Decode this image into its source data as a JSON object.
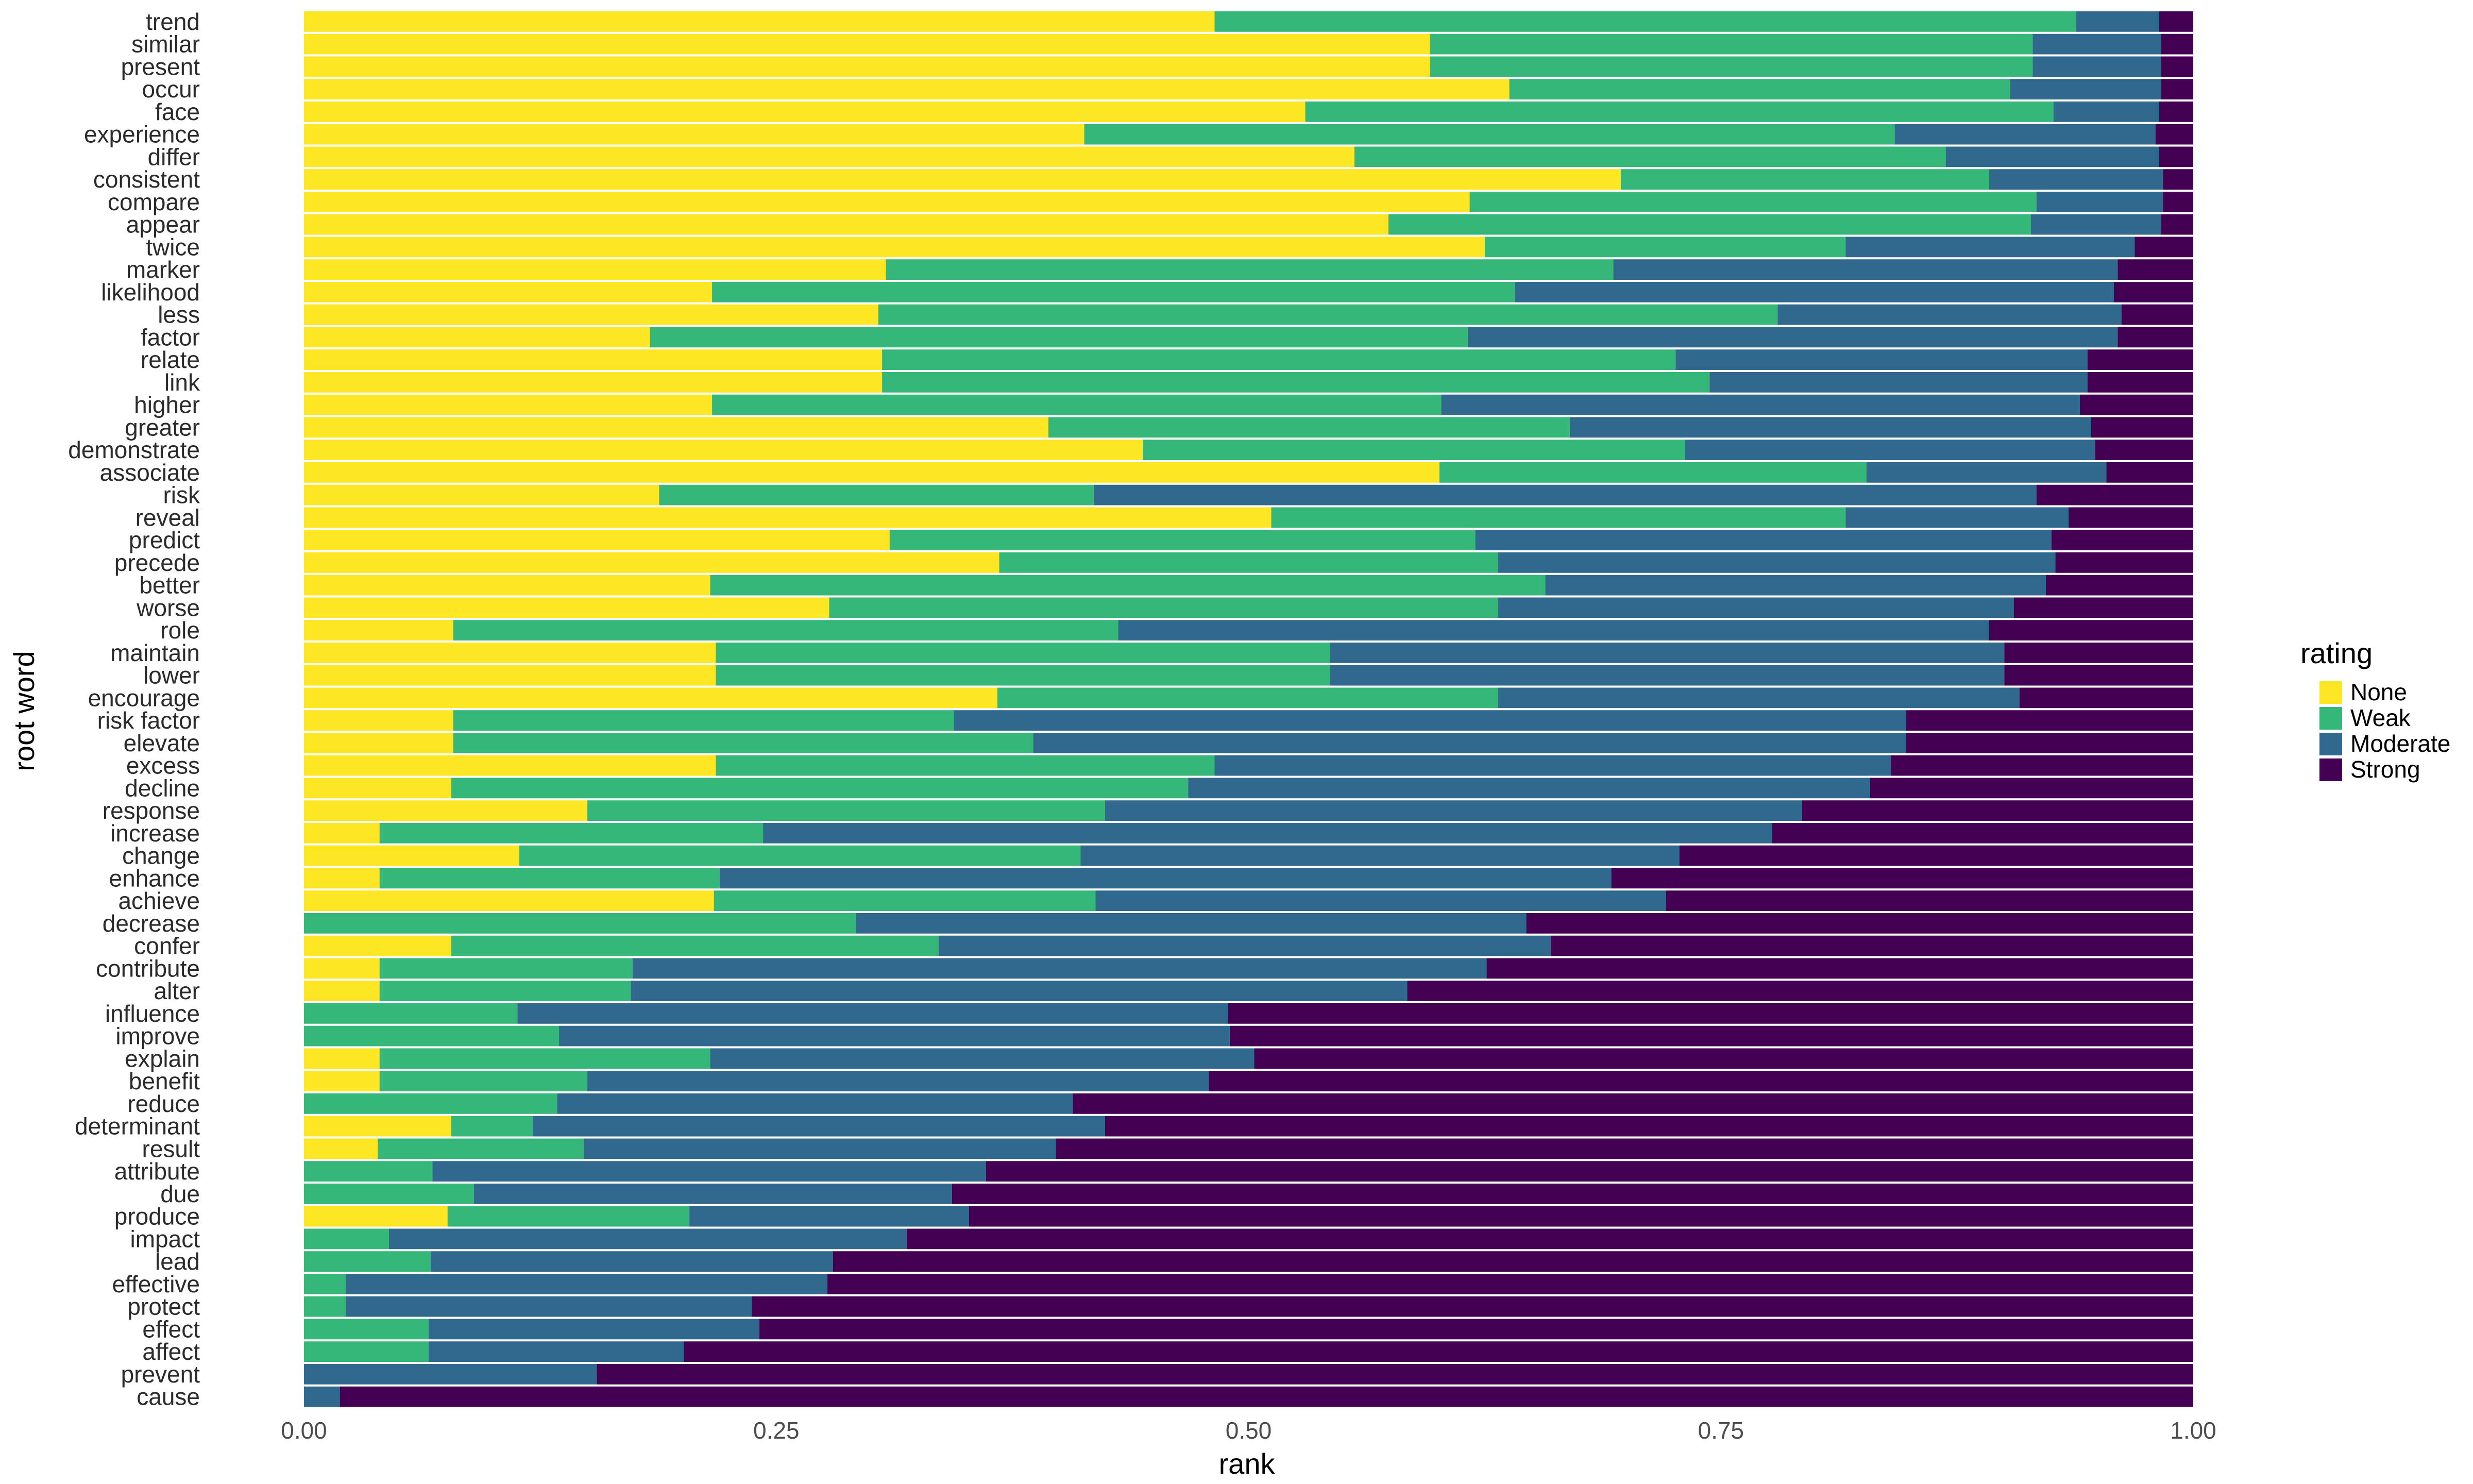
{
  "chart_data": {
    "type": "bar",
    "orientation": "horizontal",
    "stacked": true,
    "xlabel": "rank",
    "ylabel": "root word",
    "xlim": [
      0,
      1
    ],
    "x_ticks": [
      "0.00",
      "0.25",
      "0.50",
      "0.75",
      "1.00"
    ],
    "x_tick_values": [
      0,
      0.25,
      0.5,
      0.75,
      1.0
    ],
    "grid": false,
    "legend": {
      "title": "rating",
      "placement": "right",
      "entries": [
        {
          "name": "None",
          "color": "#FDE725"
        },
        {
          "name": "Weak",
          "color": "#35B779"
        },
        {
          "name": "Moderate",
          "color": "#31688E"
        },
        {
          "name": "Strong",
          "color": "#440154"
        }
      ]
    },
    "series_names": [
      "None",
      "Weak",
      "Moderate",
      "Strong"
    ],
    "categories": [
      "trend",
      "similar",
      "present",
      "occur",
      "face",
      "experience",
      "differ",
      "consistent",
      "compare",
      "appear",
      "twice",
      "marker",
      "likelihood",
      "less",
      "factor",
      "relate",
      "link",
      "higher",
      "greater",
      "demonstrate",
      "associate",
      "risk",
      "reveal",
      "predict",
      "precede",
      "better",
      "worse",
      "role",
      "maintain",
      "lower",
      "encourage",
      "risk factor",
      "elevate",
      "excess",
      "decline",
      "response",
      "increase",
      "change",
      "enhance",
      "achieve",
      "decrease",
      "confer",
      "contribute",
      "alter",
      "influence",
      "improve",
      "explain",
      "benefit",
      "reduce",
      "determinant",
      "result",
      "attribute",
      "due",
      "produce",
      "impact",
      "lead",
      "effective",
      "protect",
      "effect",
      "affect",
      "prevent",
      "cause"
    ],
    "cumulative_breaks": [
      [
        0.482,
        0.938,
        0.982
      ],
      [
        0.596,
        0.915,
        0.983
      ],
      [
        0.596,
        0.915,
        0.983
      ],
      [
        0.638,
        0.903,
        0.983
      ],
      [
        0.53,
        0.926,
        0.982
      ],
      [
        0.413,
        0.842,
        0.98
      ],
      [
        0.556,
        0.869,
        0.982
      ],
      [
        0.697,
        0.892,
        0.984
      ],
      [
        0.617,
        0.917,
        0.984
      ],
      [
        0.574,
        0.914,
        0.983
      ],
      [
        0.625,
        0.816,
        0.969
      ],
      [
        0.308,
        0.693,
        0.96
      ],
      [
        0.216,
        0.641,
        0.958
      ],
      [
        0.304,
        0.78,
        0.962
      ],
      [
        0.183,
        0.616,
        0.96
      ],
      [
        0.306,
        0.726,
        0.944
      ],
      [
        0.306,
        0.744,
        0.944
      ],
      [
        0.216,
        0.602,
        0.94
      ],
      [
        0.394,
        0.67,
        0.946
      ],
      [
        0.444,
        0.731,
        0.948
      ],
      [
        0.601,
        0.827,
        0.954
      ],
      [
        0.188,
        0.418,
        0.917
      ],
      [
        0.512,
        0.816,
        0.934
      ],
      [
        0.31,
        0.62,
        0.925
      ],
      [
        0.368,
        0.632,
        0.927
      ],
      [
        0.215,
        0.657,
        0.922
      ],
      [
        0.278,
        0.632,
        0.905
      ],
      [
        0.079,
        0.431,
        0.892
      ],
      [
        0.218,
        0.543,
        0.9
      ],
      [
        0.218,
        0.543,
        0.9
      ],
      [
        0.367,
        0.632,
        0.908
      ],
      [
        0.079,
        0.344,
        0.848
      ],
      [
        0.079,
        0.386,
        0.848
      ],
      [
        0.218,
        0.482,
        0.84
      ],
      [
        0.078,
        0.468,
        0.829
      ],
      [
        0.15,
        0.424,
        0.793
      ],
      [
        0.04,
        0.243,
        0.777
      ],
      [
        0.114,
        0.411,
        0.728
      ],
      [
        0.04,
        0.22,
        0.692
      ],
      [
        0.217,
        0.419,
        0.721
      ],
      [
        0.0,
        0.292,
        0.647
      ],
      [
        0.078,
        0.336,
        0.66
      ],
      [
        0.04,
        0.174,
        0.626
      ],
      [
        0.04,
        0.173,
        0.584
      ],
      [
        0.0,
        0.113,
        0.489
      ],
      [
        0.0,
        0.135,
        0.49
      ],
      [
        0.04,
        0.215,
        0.503
      ],
      [
        0.04,
        0.15,
        0.479
      ],
      [
        0.0,
        0.134,
        0.407
      ],
      [
        0.078,
        0.121,
        0.424
      ],
      [
        0.039,
        0.148,
        0.398
      ],
      [
        0.0,
        0.068,
        0.361
      ],
      [
        0.0,
        0.09,
        0.343
      ],
      [
        0.076,
        0.204,
        0.352
      ],
      [
        0.0,
        0.045,
        0.319
      ],
      [
        0.0,
        0.067,
        0.28
      ],
      [
        0.0,
        0.022,
        0.277
      ],
      [
        0.0,
        0.022,
        0.237
      ],
      [
        0.0,
        0.066,
        0.241
      ],
      [
        0.0,
        0.066,
        0.201
      ],
      [
        0.0,
        0.0,
        0.155
      ],
      [
        0.0,
        0.0,
        0.019
      ]
    ]
  }
}
